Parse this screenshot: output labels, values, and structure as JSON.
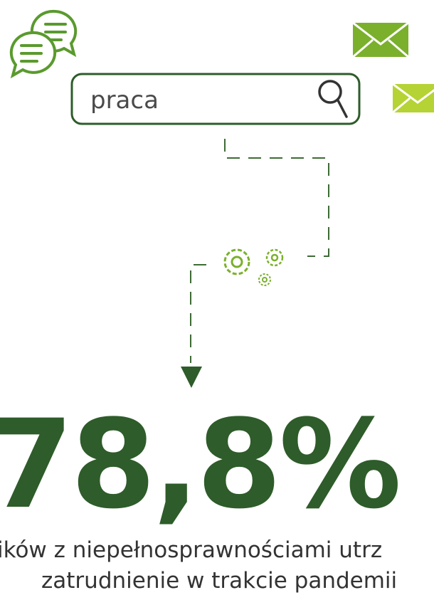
{
  "search": {
    "query": "praca"
  },
  "stat": {
    "value": "78,8%",
    "caption": [
      "ików z niepełnosprawnościami utrz",
      "zatrudnienie w trakcie pandemii"
    ]
  }
}
